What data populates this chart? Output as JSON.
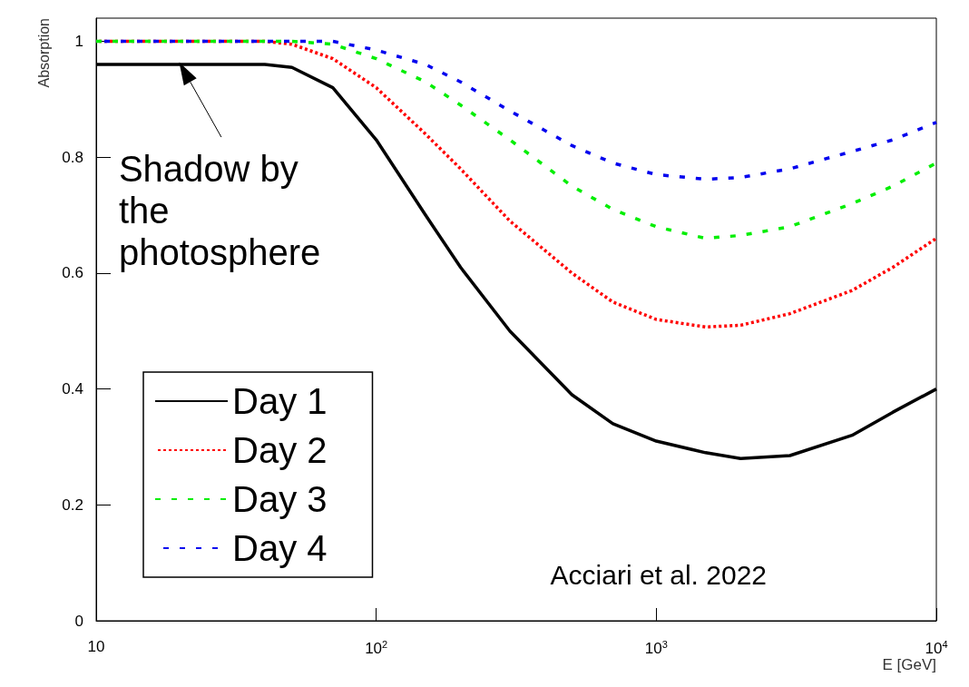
{
  "chart_data": {
    "type": "line",
    "xlabel": "E [GeV]",
    "ylabel": "Absorption",
    "log": "x",
    "xlim": [
      10,
      10000
    ],
    "xticks": [
      10,
      {
        "value": 100,
        "label": "10$^{2}$"
      },
      {
        "value": 1000,
        "label": "10$^{3}$"
      },
      {
        "value": 10000,
        "label": "10$^{4}$"
      }
    ],
    "ylim": [
      0,
      1.04
    ],
    "yticks": [
      0,
      0.2,
      0.4,
      0.6,
      0.8,
      1
    ],
    "x": [
      10,
      20,
      30,
      40,
      50,
      70,
      100,
      150,
      200,
      300,
      500,
      700,
      1000,
      1500,
      2000,
      3000,
      5000,
      7000,
      10000
    ],
    "series": [
      {
        "name": "Day 1",
        "color": "#000000",
        "line_style": "solid",
        "values": [
          0.96,
          0.96,
          0.96,
          0.96,
          0.955,
          0.92,
          0.83,
          0.7,
          0.61,
          0.5,
          0.39,
          0.34,
          0.31,
          0.29,
          0.28,
          0.285,
          0.32,
          0.36,
          0.4
        ]
      },
      {
        "name": "Day 2",
        "color": "#ff0000",
        "line_style": "dotted",
        "values": [
          1,
          1,
          1,
          1,
          0.995,
          0.97,
          0.92,
          0.84,
          0.78,
          0.69,
          0.6,
          0.55,
          0.52,
          0.507,
          0.51,
          0.53,
          0.57,
          0.61,
          0.66
        ]
      },
      {
        "name": "Day 3",
        "color": "#00ee00",
        "line_style": "dashed",
        "values": [
          1,
          1,
          1,
          1,
          1,
          0.995,
          0.97,
          0.93,
          0.89,
          0.83,
          0.75,
          0.71,
          0.68,
          0.66,
          0.665,
          0.68,
          0.72,
          0.75,
          0.79
        ]
      },
      {
        "name": "Day 4",
        "color": "#0000ee",
        "line_style": "dashed",
        "values": [
          1,
          1,
          1,
          1,
          1,
          1,
          0.985,
          0.96,
          0.93,
          0.88,
          0.82,
          0.79,
          0.77,
          0.762,
          0.765,
          0.78,
          0.81,
          0.83,
          0.86
        ]
      }
    ],
    "legend": "bottom left",
    "grid": false,
    "marker": "none",
    "annotations": [
      {
        "text": "Shadow by the photosphere",
        "x": 20,
        "y": 0.96
      },
      "Acciari et al. 2022"
    ]
  }
}
